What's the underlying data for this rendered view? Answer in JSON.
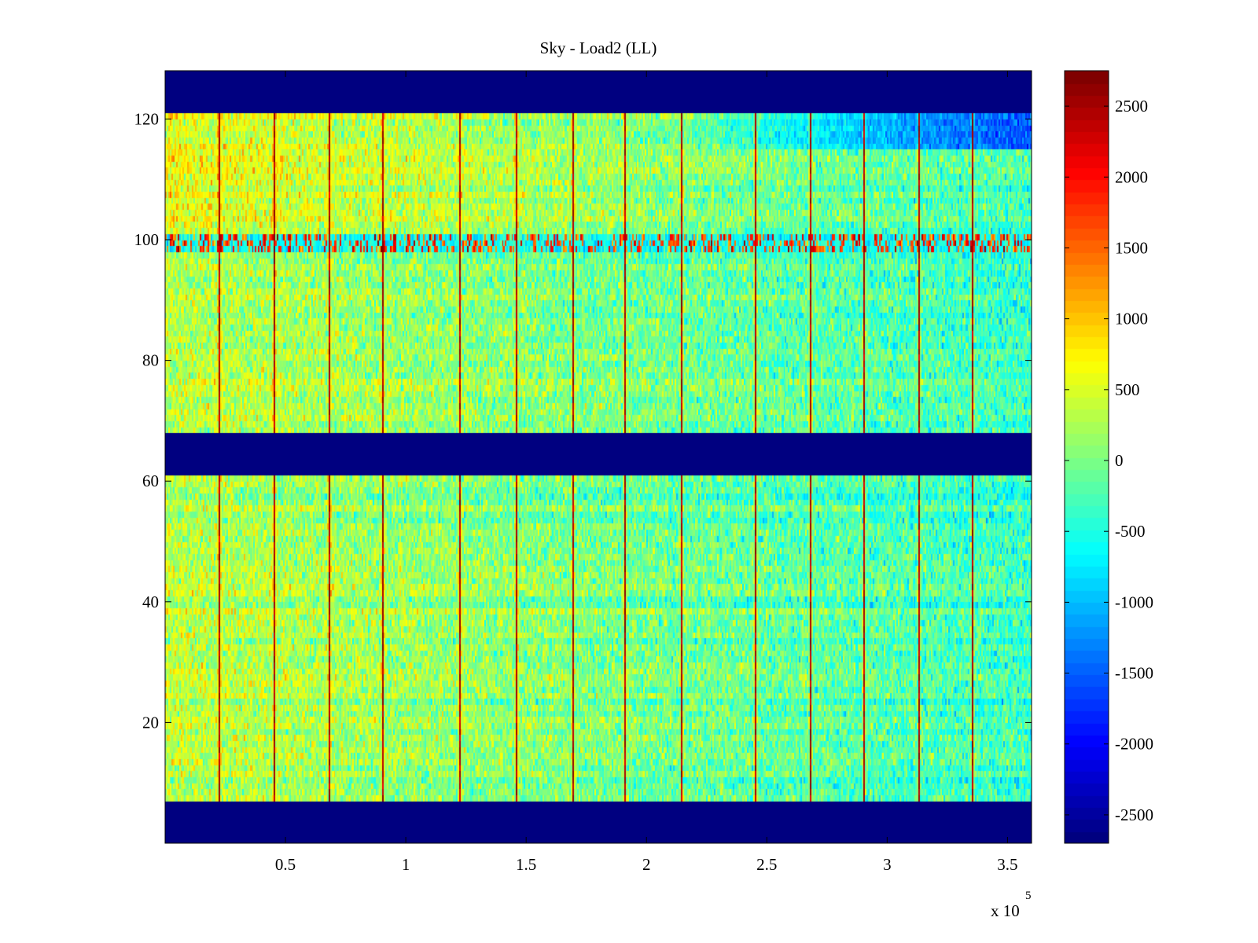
{
  "chart_data": {
    "type": "heatmap",
    "title": "Sky - Load2 (LL)",
    "xlabel": "",
    "ylabel": "",
    "x_exponent_label": "x 10",
    "x_exponent_power": "5",
    "xlim": [
      0,
      3.6
    ],
    "ylim": [
      0,
      128
    ],
    "x_ticks": [
      0.5,
      1,
      1.5,
      2,
      2.5,
      3,
      3.5
    ],
    "x_tick_labels": [
      "0.5",
      "1",
      "1.5",
      "2",
      "2.5",
      "3",
      "3.5"
    ],
    "y_ticks": [
      20,
      40,
      60,
      80,
      100,
      120
    ],
    "y_tick_labels": [
      "20",
      "40",
      "60",
      "80",
      "100",
      "120"
    ],
    "colormap": "jet",
    "clim": [
      -2700,
      2750
    ],
    "colorbar_ticks": [
      2500,
      2000,
      1500,
      1000,
      500,
      0,
      -500,
      -1000,
      -1500,
      -2000,
      -2500
    ],
    "colorbar_tick_labels": [
      "2500",
      "2000",
      "1500",
      "1000",
      "500",
      "0",
      "-500",
      "-1000",
      "-1500",
      "-2000",
      "-2500"
    ],
    "masked_rows": [
      [
        0,
        7
      ],
      [
        61,
        68
      ],
      [
        121,
        128
      ]
    ],
    "masked_value": -2700,
    "bright_row_band": [
      98,
      101
    ],
    "spike_columns_x": [
      0.22,
      0.45,
      0.68,
      0.9,
      1.22,
      1.46,
      1.69,
      1.91,
      2.14,
      2.45,
      2.68,
      2.9,
      3.13,
      3.35
    ],
    "spike_value": 2500,
    "background_mean_left": 350,
    "background_mean_right": -350,
    "cold_corner_region": {
      "x": [
        2.1,
        3.6
      ],
      "y": [
        115,
        121
      ],
      "value": -1600
    }
  }
}
